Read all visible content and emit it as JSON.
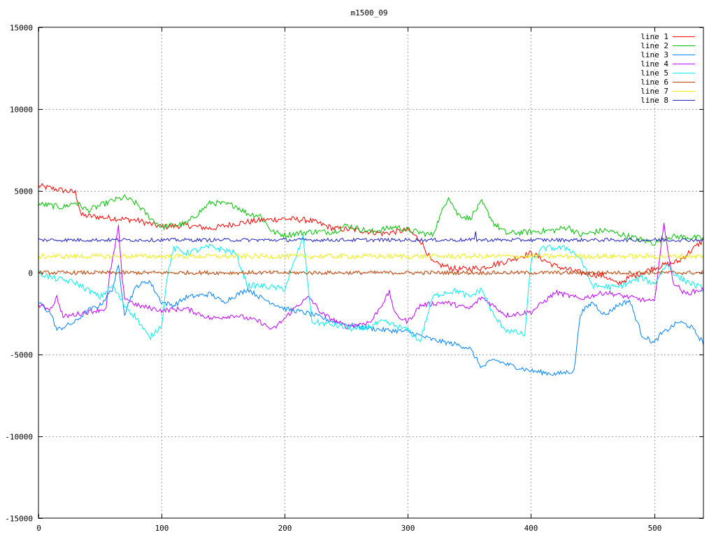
{
  "chart_data": {
    "type": "line",
    "title": "m1500_09",
    "xlabel": "",
    "ylabel": "",
    "xlim": [
      0,
      540
    ],
    "ylim": [
      -15000,
      15000
    ],
    "xticks": [
      0,
      100,
      200,
      300,
      400,
      500
    ],
    "yticks": [
      -15000,
      -10000,
      -5000,
      0,
      5000,
      10000,
      15000
    ],
    "grid": true,
    "legend_position": "top-right",
    "series": [
      {
        "name": "line 1",
        "color": "#ff0000",
        "noise": 180,
        "points": [
          [
            0,
            5300
          ],
          [
            30,
            4900
          ],
          [
            35,
            3500
          ],
          [
            50,
            3400
          ],
          [
            80,
            3200
          ],
          [
            100,
            2800
          ],
          [
            120,
            2900
          ],
          [
            140,
            2700
          ],
          [
            160,
            3000
          ],
          [
            180,
            3200
          ],
          [
            200,
            3300
          ],
          [
            220,
            3200
          ],
          [
            240,
            2700
          ],
          [
            260,
            2600
          ],
          [
            280,
            2400
          ],
          [
            300,
            2600
          ],
          [
            310,
            2000
          ],
          [
            320,
            600
          ],
          [
            340,
            200
          ],
          [
            360,
            300
          ],
          [
            380,
            700
          ],
          [
            400,
            1200
          ],
          [
            420,
            400
          ],
          [
            440,
            0
          ],
          [
            460,
            -200
          ],
          [
            470,
            -700
          ],
          [
            480,
            -300
          ],
          [
            500,
            300
          ],
          [
            520,
            700
          ],
          [
            540,
            2000
          ]
        ]
      },
      {
        "name": "line 2",
        "color": "#00c000",
        "noise": 180,
        "points": [
          [
            0,
            4200
          ],
          [
            20,
            4000
          ],
          [
            30,
            4300
          ],
          [
            40,
            3800
          ],
          [
            60,
            4400
          ],
          [
            70,
            4600
          ],
          [
            80,
            4200
          ],
          [
            90,
            3400
          ],
          [
            100,
            2800
          ],
          [
            120,
            3000
          ],
          [
            140,
            4300
          ],
          [
            160,
            4100
          ],
          [
            170,
            3600
          ],
          [
            180,
            3500
          ],
          [
            190,
            2500
          ],
          [
            200,
            2300
          ],
          [
            220,
            2500
          ],
          [
            240,
            2500
          ],
          [
            250,
            2900
          ],
          [
            270,
            2500
          ],
          [
            290,
            2800
          ],
          [
            300,
            2600
          ],
          [
            320,
            2300
          ],
          [
            333,
            4700
          ],
          [
            340,
            3600
          ],
          [
            350,
            3300
          ],
          [
            360,
            4300
          ],
          [
            370,
            3000
          ],
          [
            380,
            2400
          ],
          [
            400,
            2500
          ],
          [
            420,
            2600
          ],
          [
            430,
            2800
          ],
          [
            440,
            2300
          ],
          [
            460,
            2600
          ],
          [
            480,
            2200
          ],
          [
            500,
            1800
          ],
          [
            510,
            2200
          ],
          [
            520,
            2200
          ],
          [
            540,
            2100
          ]
        ]
      },
      {
        "name": "line 3",
        "color": "#0080ff",
        "noise": 150,
        "points": [
          [
            0,
            -1800
          ],
          [
            10,
            -2500
          ],
          [
            15,
            -3500
          ],
          [
            30,
            -3000
          ],
          [
            40,
            -2300
          ],
          [
            50,
            -2000
          ],
          [
            60,
            -1000
          ],
          [
            65,
            400
          ],
          [
            70,
            -2500
          ],
          [
            75,
            -1500
          ],
          [
            80,
            -800
          ],
          [
            90,
            -500
          ],
          [
            100,
            -1800
          ],
          [
            110,
            -2000
          ],
          [
            120,
            -1500
          ],
          [
            140,
            -1300
          ],
          [
            150,
            -1800
          ],
          [
            170,
            -1000
          ],
          [
            180,
            -1500
          ],
          [
            200,
            -2200
          ],
          [
            220,
            -2500
          ],
          [
            240,
            -3000
          ],
          [
            260,
            -3300
          ],
          [
            280,
            -3500
          ],
          [
            300,
            -3600
          ],
          [
            320,
            -4100
          ],
          [
            340,
            -4400
          ],
          [
            350,
            -4600
          ],
          [
            360,
            -5800
          ],
          [
            370,
            -5300
          ],
          [
            380,
            -5600
          ],
          [
            400,
            -6000
          ],
          [
            420,
            -6200
          ],
          [
            435,
            -6000
          ],
          [
            440,
            -2500
          ],
          [
            450,
            -1800
          ],
          [
            460,
            -2600
          ],
          [
            470,
            -2000
          ],
          [
            480,
            -1700
          ],
          [
            490,
            -3800
          ],
          [
            500,
            -4300
          ],
          [
            505,
            -3800
          ],
          [
            520,
            -3000
          ],
          [
            530,
            -3300
          ],
          [
            540,
            -4300
          ]
        ]
      },
      {
        "name": "line 4",
        "color": "#c000ff",
        "noise": 150,
        "points": [
          [
            0,
            -2000
          ],
          [
            10,
            -2200
          ],
          [
            15,
            -1500
          ],
          [
            20,
            -2700
          ],
          [
            40,
            -2400
          ],
          [
            55,
            -2200
          ],
          [
            58,
            0
          ],
          [
            62,
            1500
          ],
          [
            65,
            2800
          ],
          [
            68,
            -500
          ],
          [
            70,
            -1500
          ],
          [
            80,
            -2000
          ],
          [
            100,
            -2300
          ],
          [
            120,
            -2200
          ],
          [
            140,
            -2800
          ],
          [
            160,
            -2600
          ],
          [
            180,
            -3000
          ],
          [
            190,
            -3500
          ],
          [
            200,
            -2800
          ],
          [
            210,
            -2000
          ],
          [
            220,
            -1500
          ],
          [
            230,
            -2500
          ],
          [
            250,
            -3300
          ],
          [
            270,
            -3000
          ],
          [
            285,
            -1200
          ],
          [
            290,
            -2600
          ],
          [
            300,
            -3000
          ],
          [
            310,
            -2000
          ],
          [
            330,
            -1800
          ],
          [
            350,
            -2200
          ],
          [
            360,
            -1500
          ],
          [
            380,
            -2600
          ],
          [
            400,
            -2400
          ],
          [
            420,
            -1200
          ],
          [
            440,
            -1600
          ],
          [
            460,
            -1200
          ],
          [
            480,
            -1500
          ],
          [
            500,
            -1800
          ],
          [
            508,
            3000
          ],
          [
            515,
            -500
          ],
          [
            525,
            -1300
          ],
          [
            540,
            -1000
          ]
        ]
      },
      {
        "name": "line 5",
        "color": "#00eeee",
        "noise": 180,
        "points": [
          [
            0,
            0
          ],
          [
            10,
            -300
          ],
          [
            30,
            -600
          ],
          [
            50,
            -1500
          ],
          [
            60,
            -800
          ],
          [
            70,
            -2000
          ],
          [
            80,
            -2800
          ],
          [
            90,
            -4000
          ],
          [
            100,
            -3200
          ],
          [
            105,
            0
          ],
          [
            110,
            1500
          ],
          [
            120,
            1200
          ],
          [
            140,
            1600
          ],
          [
            160,
            1200
          ],
          [
            170,
            -800
          ],
          [
            180,
            -800
          ],
          [
            200,
            -1000
          ],
          [
            215,
            2200
          ],
          [
            222,
            -3000
          ],
          [
            240,
            -3200
          ],
          [
            260,
            -3500
          ],
          [
            280,
            -3000
          ],
          [
            300,
            -3500
          ],
          [
            310,
            -4200
          ],
          [
            320,
            -1500
          ],
          [
            330,
            -1200
          ],
          [
            340,
            -1100
          ],
          [
            350,
            -1500
          ],
          [
            360,
            -1000
          ],
          [
            370,
            -2700
          ],
          [
            380,
            -3500
          ],
          [
            395,
            -3800
          ],
          [
            400,
            700
          ],
          [
            410,
            1500
          ],
          [
            430,
            1500
          ],
          [
            440,
            900
          ],
          [
            450,
            -800
          ],
          [
            470,
            -900
          ],
          [
            490,
            -300
          ],
          [
            500,
            -700
          ],
          [
            510,
            500
          ],
          [
            520,
            -300
          ],
          [
            540,
            -1000
          ]
        ]
      },
      {
        "name": "line 6",
        "color": "#c04000",
        "noise": 120,
        "points": [
          [
            0,
            0
          ],
          [
            540,
            0
          ]
        ]
      },
      {
        "name": "line 7",
        "color": "#eeee00",
        "noise": 150,
        "points": [
          [
            0,
            1000
          ],
          [
            540,
            1000
          ]
        ]
      },
      {
        "name": "line 8",
        "color": "#2020c0",
        "noise": 110,
        "points": [
          [
            0,
            2000
          ],
          [
            354,
            2000
          ],
          [
            355,
            2600
          ],
          [
            356,
            2000
          ],
          [
            540,
            2000
          ]
        ]
      }
    ]
  }
}
